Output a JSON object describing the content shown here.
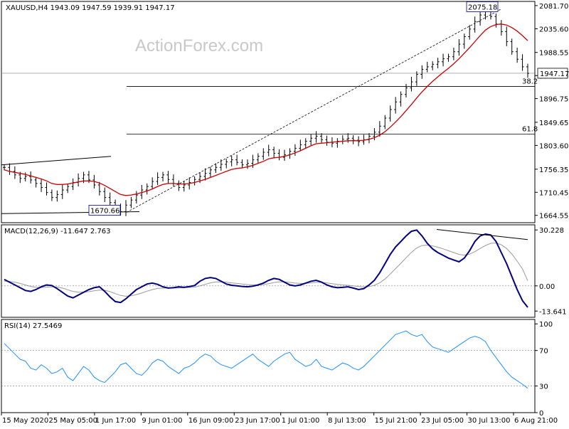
{
  "chart_data": [
    {
      "type": "candlestick",
      "panel": "price",
      "symbol_header": "XAUUSD,H4  1943.09 1947.59 1939.91 1947.17",
      "watermark": "ActionForex.com",
      "ylim": [
        1650,
        2090
      ],
      "y_ticks": [
        2081.7,
        2035.6,
        1988.55,
        1942.5,
        1896.75,
        1849.65,
        1803.6,
        1756.35,
        1710.45,
        1664.55
      ],
      "current_price_label": "1947.17",
      "current_price": 1947.17,
      "annotations": {
        "high_label": "2075.18",
        "high_value": 2075.18,
        "low_label": "1670.66",
        "low_value": 1670.66,
        "fib_382_label": "38.2",
        "fib_382_value": 1921.0,
        "fib_618_label": "61.8",
        "fib_618_value": 1826.0
      },
      "price_series": [
        1760,
        1752,
        1745,
        1738,
        1742,
        1735,
        1728,
        1720,
        1710,
        1700,
        1706,
        1715,
        1722,
        1730,
        1738,
        1745,
        1735,
        1725,
        1712,
        1700,
        1690,
        1680,
        1672,
        1685,
        1695,
        1705,
        1715,
        1722,
        1732,
        1740,
        1745,
        1736,
        1728,
        1720,
        1725,
        1730,
        1736,
        1742,
        1748,
        1755,
        1760,
        1766,
        1771,
        1775,
        1770,
        1765,
        1768,
        1775,
        1782,
        1790,
        1795,
        1788,
        1780,
        1785,
        1792,
        1798,
        1805,
        1812,
        1818,
        1822,
        1815,
        1810,
        1808,
        1812,
        1816,
        1818,
        1814,
        1811,
        1815,
        1822,
        1830,
        1842,
        1858,
        1875,
        1890,
        1905,
        1918,
        1930,
        1945,
        1955,
        1960,
        1965,
        1970,
        1976,
        1980,
        1990,
        2005,
        2020,
        2035,
        2050,
        2063,
        2070,
        2060,
        2045,
        2030,
        2010,
        1990,
        1975,
        1960,
        1947
      ],
      "ma_series": [
        1755,
        1752,
        1750,
        1748,
        1746,
        1743,
        1740,
        1737,
        1733,
        1728,
        1726,
        1726,
        1727,
        1729,
        1731,
        1733,
        1733,
        1732,
        1729,
        1724,
        1718,
        1712,
        1706,
        1704,
        1705,
        1707,
        1710,
        1713,
        1717,
        1722,
        1726,
        1728,
        1728,
        1727,
        1727,
        1728,
        1730,
        1733,
        1736,
        1740,
        1744,
        1748,
        1752,
        1756,
        1758,
        1759,
        1761,
        1764,
        1768,
        1772,
        1777,
        1779,
        1780,
        1782,
        1785,
        1789,
        1793,
        1798,
        1803,
        1807,
        1808,
        1809,
        1810,
        1811,
        1812,
        1813,
        1813,
        1813,
        1814,
        1816,
        1819,
        1824,
        1831,
        1840,
        1850,
        1861,
        1873,
        1885,
        1898,
        1910,
        1921,
        1931,
        1940,
        1949,
        1957,
        1966,
        1976,
        1987,
        1998,
        2010,
        2022,
        2033,
        2040,
        2044,
        2045,
        2043,
        2038,
        2031,
        2022,
        2012
      ]
    },
    {
      "type": "line",
      "panel": "macd",
      "header": "MACD(12,26,9) -11.647 2.763",
      "ylim": [
        -17,
        33
      ],
      "y_ticks": [
        30.228,
        0.0,
        -13.641
      ],
      "macd_series": [
        3.5,
        2.0,
        0.5,
        -1.0,
        -2.5,
        -3.0,
        -2.0,
        -0.5,
        0.5,
        0.2,
        -1.5,
        -3.5,
        -5.5,
        -6.5,
        -5.0,
        -3.5,
        -2.0,
        -1.0,
        -0.5,
        -3.0,
        -6.0,
        -8.5,
        -9.0,
        -7.0,
        -4.5,
        -2.0,
        -0.5,
        1.0,
        1.5,
        0.8,
        -0.5,
        -1.2,
        -1.0,
        -0.5,
        -0.8,
        -0.4,
        0.2,
        2.5,
        4.0,
        4.5,
        4.0,
        2.5,
        1.0,
        0.3,
        0.0,
        -0.3,
        -0.5,
        -0.2,
        0.5,
        1.5,
        3.0,
        4.0,
        3.5,
        2.0,
        0.5,
        0.0,
        0.5,
        1.5,
        2.5,
        3.0,
        2.0,
        0.5,
        -0.5,
        -1.0,
        -0.8,
        -0.5,
        -1.2,
        -2.0,
        -1.5,
        0.5,
        3.0,
        7.0,
        12.0,
        17.0,
        21.0,
        24.0,
        27.0,
        29.5,
        30.2,
        27.0,
        23.0,
        20.0,
        18.0,
        16.5,
        15.0,
        14.0,
        13.0,
        15.0,
        19.0,
        24.0,
        27.0,
        28.0,
        27.5,
        24.0,
        18.0,
        12.0,
        5.0,
        -2.0,
        -8.0,
        -11.6
      ],
      "signal_series": [
        2.5,
        2.4,
        2.0,
        1.3,
        0.5,
        -0.3,
        -0.8,
        -0.9,
        -0.7,
        -0.5,
        -0.6,
        -1.2,
        -2.1,
        -3.0,
        -3.4,
        -3.4,
        -3.1,
        -2.7,
        -2.3,
        -2.4,
        -3.1,
        -4.2,
        -5.2,
        -5.6,
        -5.4,
        -4.7,
        -3.9,
        -2.9,
        -2.0,
        -1.4,
        -1.2,
        -1.2,
        -1.2,
        -1.1,
        -1.0,
        -0.9,
        -0.7,
        0.0,
        0.8,
        1.6,
        2.1,
        2.2,
        2.0,
        1.6,
        1.3,
        1.0,
        0.7,
        0.5,
        0.5,
        0.7,
        1.2,
        1.8,
        2.2,
        2.2,
        1.9,
        1.5,
        1.3,
        1.3,
        1.6,
        1.9,
        1.9,
        1.6,
        1.2,
        0.8,
        0.5,
        0.3,
        0.0,
        -0.4,
        -0.6,
        -0.4,
        0.3,
        1.6,
        3.7,
        6.4,
        9.3,
        12.2,
        15.2,
        18.1,
        20.5,
        21.8,
        22.0,
        21.6,
        20.9,
        20.0,
        19.0,
        18.0,
        17.0,
        16.6,
        17.1,
        18.5,
        20.2,
        21.8,
        23.0,
        23.2,
        22.2,
        20.2,
        17.2,
        13.4,
        9.1,
        2.763
      ],
      "trendline_label": ""
    },
    {
      "type": "line",
      "panel": "rsi",
      "header": "RSI(14) 27.5469",
      "ylim": [
        0,
        105
      ],
      "y_ticks": [
        100,
        70,
        30,
        0
      ],
      "rsi_series": [
        78,
        72,
        66,
        60,
        58,
        50,
        48,
        54,
        50,
        44,
        46,
        50,
        40,
        36,
        44,
        52,
        48,
        40,
        36,
        34,
        40,
        46,
        54,
        56,
        50,
        44,
        42,
        48,
        56,
        60,
        58,
        52,
        48,
        44,
        50,
        52,
        56,
        62,
        66,
        64,
        58,
        54,
        52,
        50,
        54,
        58,
        62,
        66,
        60,
        56,
        52,
        58,
        62,
        66,
        68,
        60,
        56,
        52,
        54,
        60,
        52,
        50,
        48,
        52,
        56,
        54,
        50,
        48,
        52,
        58,
        64,
        70,
        76,
        82,
        88,
        90,
        92,
        88,
        86,
        88,
        80,
        74,
        72,
        70,
        68,
        72,
        76,
        80,
        84,
        86,
        84,
        80,
        70,
        62,
        54,
        46,
        40,
        36,
        32,
        27.5
      ],
      "overbought": 70,
      "oversold": 30
    }
  ],
  "x_axis_labels": [
    "15 May 2020",
    "25 May 05:00",
    "1 Jun 17:00",
    "9 Jun 01:00",
    "16 Jun 09:00",
    "23 Jun 17:00",
    "1 Jul 01:00",
    "8 Jul 13:00",
    "15 Jul 21:00",
    "23 Jul 05:00",
    "30 Jul 13:00",
    "6 Aug 21:00"
  ],
  "colors": {
    "price": "#000000",
    "ma": "#cc0000",
    "macd": "#000080",
    "signal": "#999999",
    "rsi": "#1e90ff",
    "grid": "#7f7f7f",
    "trend": "#000000"
  }
}
